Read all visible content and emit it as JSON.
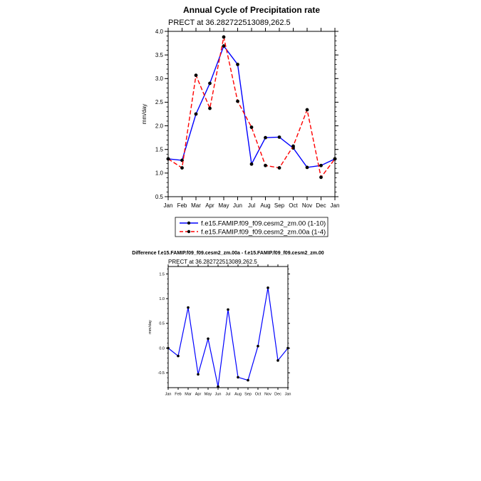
{
  "chart_data": [
    {
      "type": "line",
      "title": "Annual Cycle of Precipitation rate",
      "subtitle": "PRECT at 36.282722513089,262.5",
      "xlabel": "",
      "ylabel": "mm/day",
      "categories": [
        "Jan",
        "Feb",
        "Mar",
        "Apr",
        "May",
        "Jun",
        "Jul",
        "Aug",
        "Sep",
        "Oct",
        "Nov",
        "Dec",
        "Jan"
      ],
      "ylim": [
        0.5,
        4.0
      ],
      "yticks": [
        "0.5",
        "1.0",
        "1.5",
        "2.0",
        "2.5",
        "3.0",
        "3.5",
        "4.0"
      ],
      "legend_position": "bottom",
      "grid": false,
      "series": [
        {
          "name": "f.e15.FAMIP.f09_f09.cesm2_zm.00 (1-10)",
          "color": "#0000ff",
          "dash": "solid",
          "values": [
            1.3,
            1.27,
            2.25,
            2.9,
            3.69,
            3.3,
            1.19,
            1.75,
            1.76,
            1.53,
            1.12,
            1.16,
            1.3
          ]
        },
        {
          "name": "f.e15.FAMIP.f09_f09.cesm2_zm.00a (1-4)",
          "color": "#ff0000",
          "dash": "dashed",
          "values": [
            1.3,
            1.11,
            3.07,
            2.37,
            3.88,
            2.52,
            1.97,
            1.16,
            1.11,
            1.57,
            2.34,
            0.91,
            1.3
          ]
        }
      ]
    },
    {
      "type": "line",
      "title": "Difference f.e15.FAMIP.f09_f09.cesm2_zm.00a - f.e15.FAMIP.f09_f09.cesm2_zm.00",
      "subtitle": "PRECT at 36.282722513089,262.5",
      "xlabel": "",
      "ylabel": "mm/day",
      "categories": [
        "Jan",
        "Feb",
        "Mar",
        "Apr",
        "May",
        "Jun",
        "Jul",
        "Aug",
        "Sep",
        "Oct",
        "Nov",
        "Dec",
        "Jan"
      ],
      "ylim": [
        -0.8,
        1.65
      ],
      "yticks": [
        "-0.5",
        "0.0",
        "0.5",
        "1.0",
        "1.5"
      ],
      "grid": false,
      "series": [
        {
          "color": "#0000ff",
          "values": [
            0.0,
            -0.16,
            0.82,
            -0.53,
            0.19,
            -0.78,
            0.78,
            -0.59,
            -0.65,
            0.04,
            1.22,
            -0.25,
            0.0
          ]
        }
      ]
    }
  ]
}
